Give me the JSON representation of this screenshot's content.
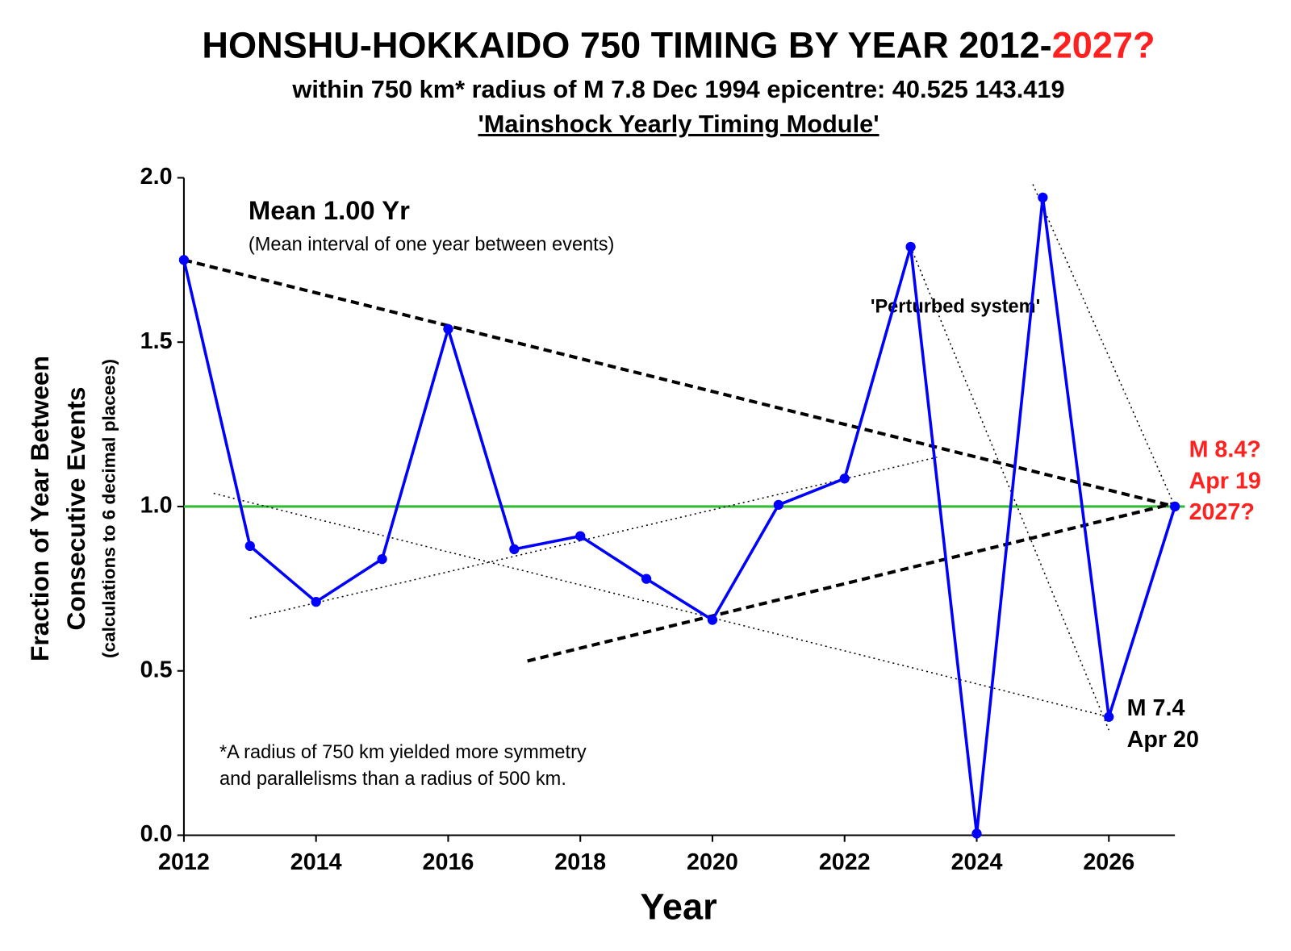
{
  "chart_data": {
    "type": "line",
    "title": "HONSHU-HOKKAIDO 750 TIMING BY YEAR 2012-",
    "title_highlight": "2027?",
    "subtitle": "within 750 km* radius of M 7.8 Dec 1994 epicentre: 40.525 143.419",
    "module": "'Mainshock Yearly Timing Module'",
    "x_label": "Year",
    "y_label": [
      "Fraction of Year Between",
      "Consecutive Events",
      "(calculations to 6 decimal placees)"
    ],
    "x": [
      2012,
      2013,
      2014,
      2015,
      2016,
      2017,
      2018,
      2019,
      2020,
      2021,
      2022,
      2023,
      2024,
      2025,
      2026,
      2027
    ],
    "series": [
      {
        "name": "Fraction of year",
        "color": "#0000ff",
        "values": [
          1.75,
          0.88,
          0.71,
          0.84,
          1.54,
          0.87,
          0.91,
          0.78,
          0.655,
          1.005,
          1.085,
          1.79,
          0.005,
          1.94,
          0.36,
          1.0
        ]
      }
    ],
    "xlim": [
      2012,
      2027
    ],
    "xticks": [
      2012,
      2014,
      2016,
      2018,
      2020,
      2022,
      2024,
      2026
    ],
    "ylim": [
      0,
      2
    ],
    "yticks": [
      {
        "value": 0,
        "label": "0.0"
      },
      0.5,
      {
        "value": 1,
        "label": "1.0"
      },
      1.5,
      {
        "value": 2,
        "label": "2.0"
      }
    ],
    "mean_line": {
      "value": 1,
      "color": "#33bb33"
    },
    "trend_lines": [
      {
        "style": "dashed",
        "x": [
          2012,
          2027
        ],
        "y": [
          1.75,
          1.0
        ]
      },
      {
        "style": "dashed",
        "x": [
          2017.2,
          2027
        ],
        "y": [
          0.53,
          1.01
        ]
      },
      {
        "style": "dotted",
        "x": [
          2012.45,
          2026
        ],
        "y": [
          1.04,
          0.36
        ]
      },
      {
        "style": "dotted",
        "x": [
          2013,
          2023.4
        ],
        "y": [
          0.66,
          1.15
        ]
      },
      {
        "style": "dotted",
        "x": [
          2023,
          2026
        ],
        "y": [
          1.79,
          0.32
        ]
      },
      {
        "style": "dotted",
        "x": [
          2024.85,
          2027
        ],
        "y": [
          1.98,
          1.0
        ]
      }
    ],
    "annotations": {
      "mean": "Mean 1.00 Yr",
      "mean_note": "(Mean interval of one year between events)",
      "perturbed": "'Perturbed system'",
      "m74": [
        "M 7.4",
        "Apr 20"
      ],
      "m84": [
        "M 8.4?",
        "Apr 19",
        "2027?"
      ],
      "footnote": [
        "*A radius of 750 km yielded more symmetry",
        "and parallelisms than a radius of 500 km."
      ]
    }
  }
}
